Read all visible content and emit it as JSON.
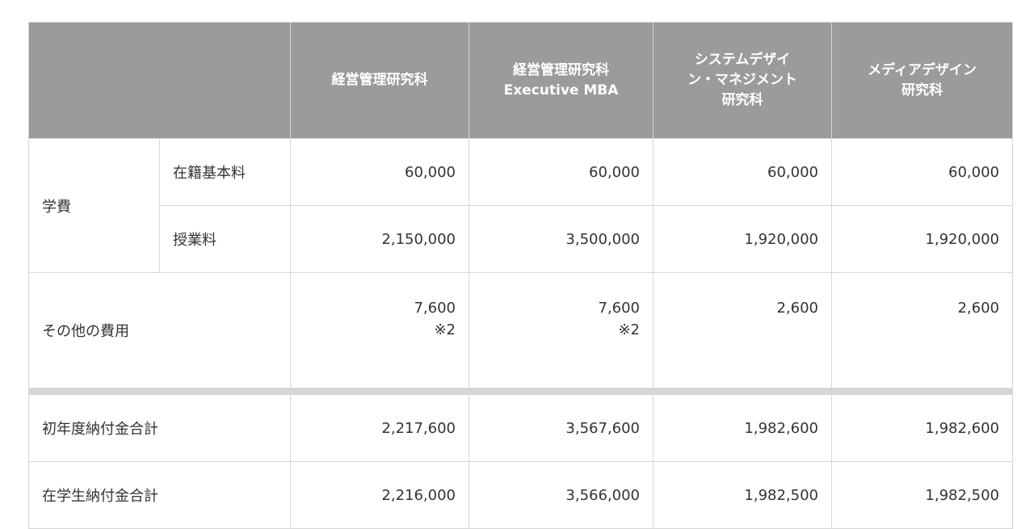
{
  "header": {
    "corner": "",
    "columns": [
      {
        "lines": [
          "経営管理研究科"
        ]
      },
      {
        "lines": [
          "経営管理研究科",
          "Executive MBA"
        ]
      },
      {
        "lines": [
          "システムデザイ",
          "ン・マネジメント",
          "研究科"
        ]
      },
      {
        "lines": [
          "メディアデザイン",
          "研究科"
        ]
      }
    ]
  },
  "rows": {
    "tuition_group": "学費",
    "enrollment": {
      "label": "在籍基本料",
      "values": [
        "60,000",
        "60,000",
        "60,000",
        "60,000"
      ]
    },
    "lecture": {
      "label": "授業料",
      "values": [
        "2,150,000",
        "3,500,000",
        "1,920,000",
        "1,920,000"
      ]
    },
    "other": {
      "label": "その他の費用",
      "values": [
        "7,600",
        "7,600",
        "2,600",
        "2,600"
      ],
      "notes": [
        "※2",
        "※2",
        "",
        ""
      ]
    },
    "first_year_total": {
      "label": "初年度納付金合計",
      "values": [
        "2,217,600",
        "3,567,600",
        "1,982,600",
        "1,982,600"
      ]
    },
    "current_total": {
      "label": "在学生納付金合計",
      "values": [
        "2,216,000",
        "3,566,000",
        "1,982,500",
        "1,982,500"
      ]
    }
  }
}
